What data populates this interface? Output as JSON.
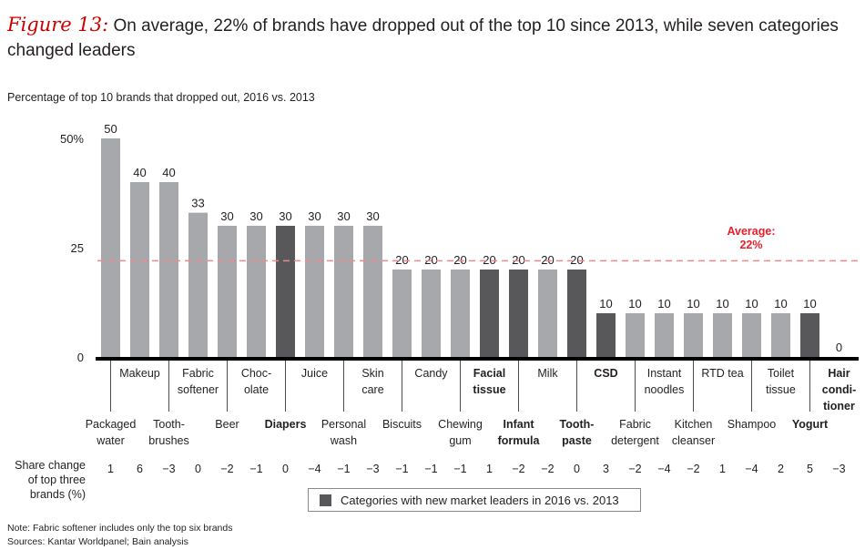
{
  "title": {
    "figure_label": "Figure 13:",
    "text": "On average, 22% of brands have dropped out of the top 10 since 2013, while seven categories changed leaders"
  },
  "subtitle": "Percentage of top 10 brands that dropped out, 2016 vs. 2013",
  "colors": {
    "bar_default": "#a7a8ab",
    "bar_new_leader": "#58585a",
    "average_line": "#ee8a8a",
    "average_label": "#e8202a",
    "axis": "#000000"
  },
  "chart_data": {
    "type": "bar",
    "title": "Percentage of top 10 brands that dropped out, 2016 vs. 2013",
    "xlabel": "",
    "ylabel": "",
    "ylim": [
      0,
      50
    ],
    "yticks": [
      {
        "value": 0,
        "label": "0"
      },
      {
        "value": 25,
        "label": "25"
      },
      {
        "value": 50,
        "label": "50%"
      }
    ],
    "grid": false,
    "categories": [
      "Packaged water",
      "Makeup",
      "Tooth-brushes",
      "Fabric softener",
      "Beer",
      "Choc-olate",
      "Diapers",
      "Juice",
      "Personal wash",
      "Skin care",
      "Biscuits",
      "Candy",
      "Chewing gum",
      "Facial tissue",
      "Infant formula",
      "Milk",
      "Tooth-paste",
      "CSD",
      "Fabric detergent",
      "Instant noodles",
      "Kitchen cleanser",
      "RTD tea",
      "Shampoo",
      "Toilet tissue",
      "Yogurt",
      "Hair condi-tioner"
    ],
    "category_label_lines": [
      [
        "Packaged",
        "water"
      ],
      [
        "Makeup"
      ],
      [
        "Tooth-",
        "brushes"
      ],
      [
        "Fabric",
        "softener"
      ],
      [
        "Beer"
      ],
      [
        "Choc-",
        "olate"
      ],
      [
        "Diapers"
      ],
      [
        "Juice"
      ],
      [
        "Personal",
        "wash"
      ],
      [
        "Skin",
        "care"
      ],
      [
        "Biscuits"
      ],
      [
        "Candy"
      ],
      [
        "Chewing",
        "gum"
      ],
      [
        "Facial",
        "tissue"
      ],
      [
        "Infant",
        "formula"
      ],
      [
        "Milk"
      ],
      [
        "Tooth-",
        "paste"
      ],
      [
        "CSD"
      ],
      [
        "Fabric",
        "detergent"
      ],
      [
        "Instant",
        "noodles"
      ],
      [
        "Kitchen",
        "cleanser"
      ],
      [
        "RTD tea"
      ],
      [
        "Shampoo"
      ],
      [
        "Toilet",
        "tissue"
      ],
      [
        "Yogurt"
      ],
      [
        "Hair",
        "condi-",
        "tioner"
      ]
    ],
    "values": [
      50,
      40,
      40,
      33,
      30,
      30,
      30,
      30,
      30,
      30,
      20,
      20,
      20,
      20,
      20,
      20,
      20,
      10,
      10,
      10,
      10,
      10,
      10,
      10,
      10,
      0
    ],
    "new_market_leader": [
      false,
      false,
      false,
      false,
      false,
      false,
      true,
      false,
      false,
      false,
      false,
      false,
      false,
      true,
      true,
      false,
      true,
      true,
      false,
      false,
      false,
      false,
      false,
      false,
      true,
      true
    ],
    "share_change_label": [
      "Share change",
      "of top three",
      "brands (%)"
    ],
    "share_change_top_three": [
      "1",
      "6",
      "−3",
      "0",
      "−2",
      "−1",
      "0",
      "−4",
      "−1",
      "−3",
      "−1",
      "−1",
      "−1",
      "1",
      "−2",
      "−2",
      "0",
      "3",
      "−2",
      "−4",
      "−2",
      "1",
      "−4",
      "2",
      "5",
      "−3"
    ],
    "average": {
      "value": 22,
      "label_lines": [
        "Average:",
        "22%"
      ]
    },
    "legend": {
      "entries": [
        {
          "label": "Categories with new market leaders in  2016 vs. 2013",
          "color": "#58585a"
        }
      ],
      "placement": "bottom-center"
    }
  },
  "notes": [
    "Note: Fabric softener includes only the top six brands",
    "Sources: Kantar Worldpanel; Bain analysis"
  ]
}
